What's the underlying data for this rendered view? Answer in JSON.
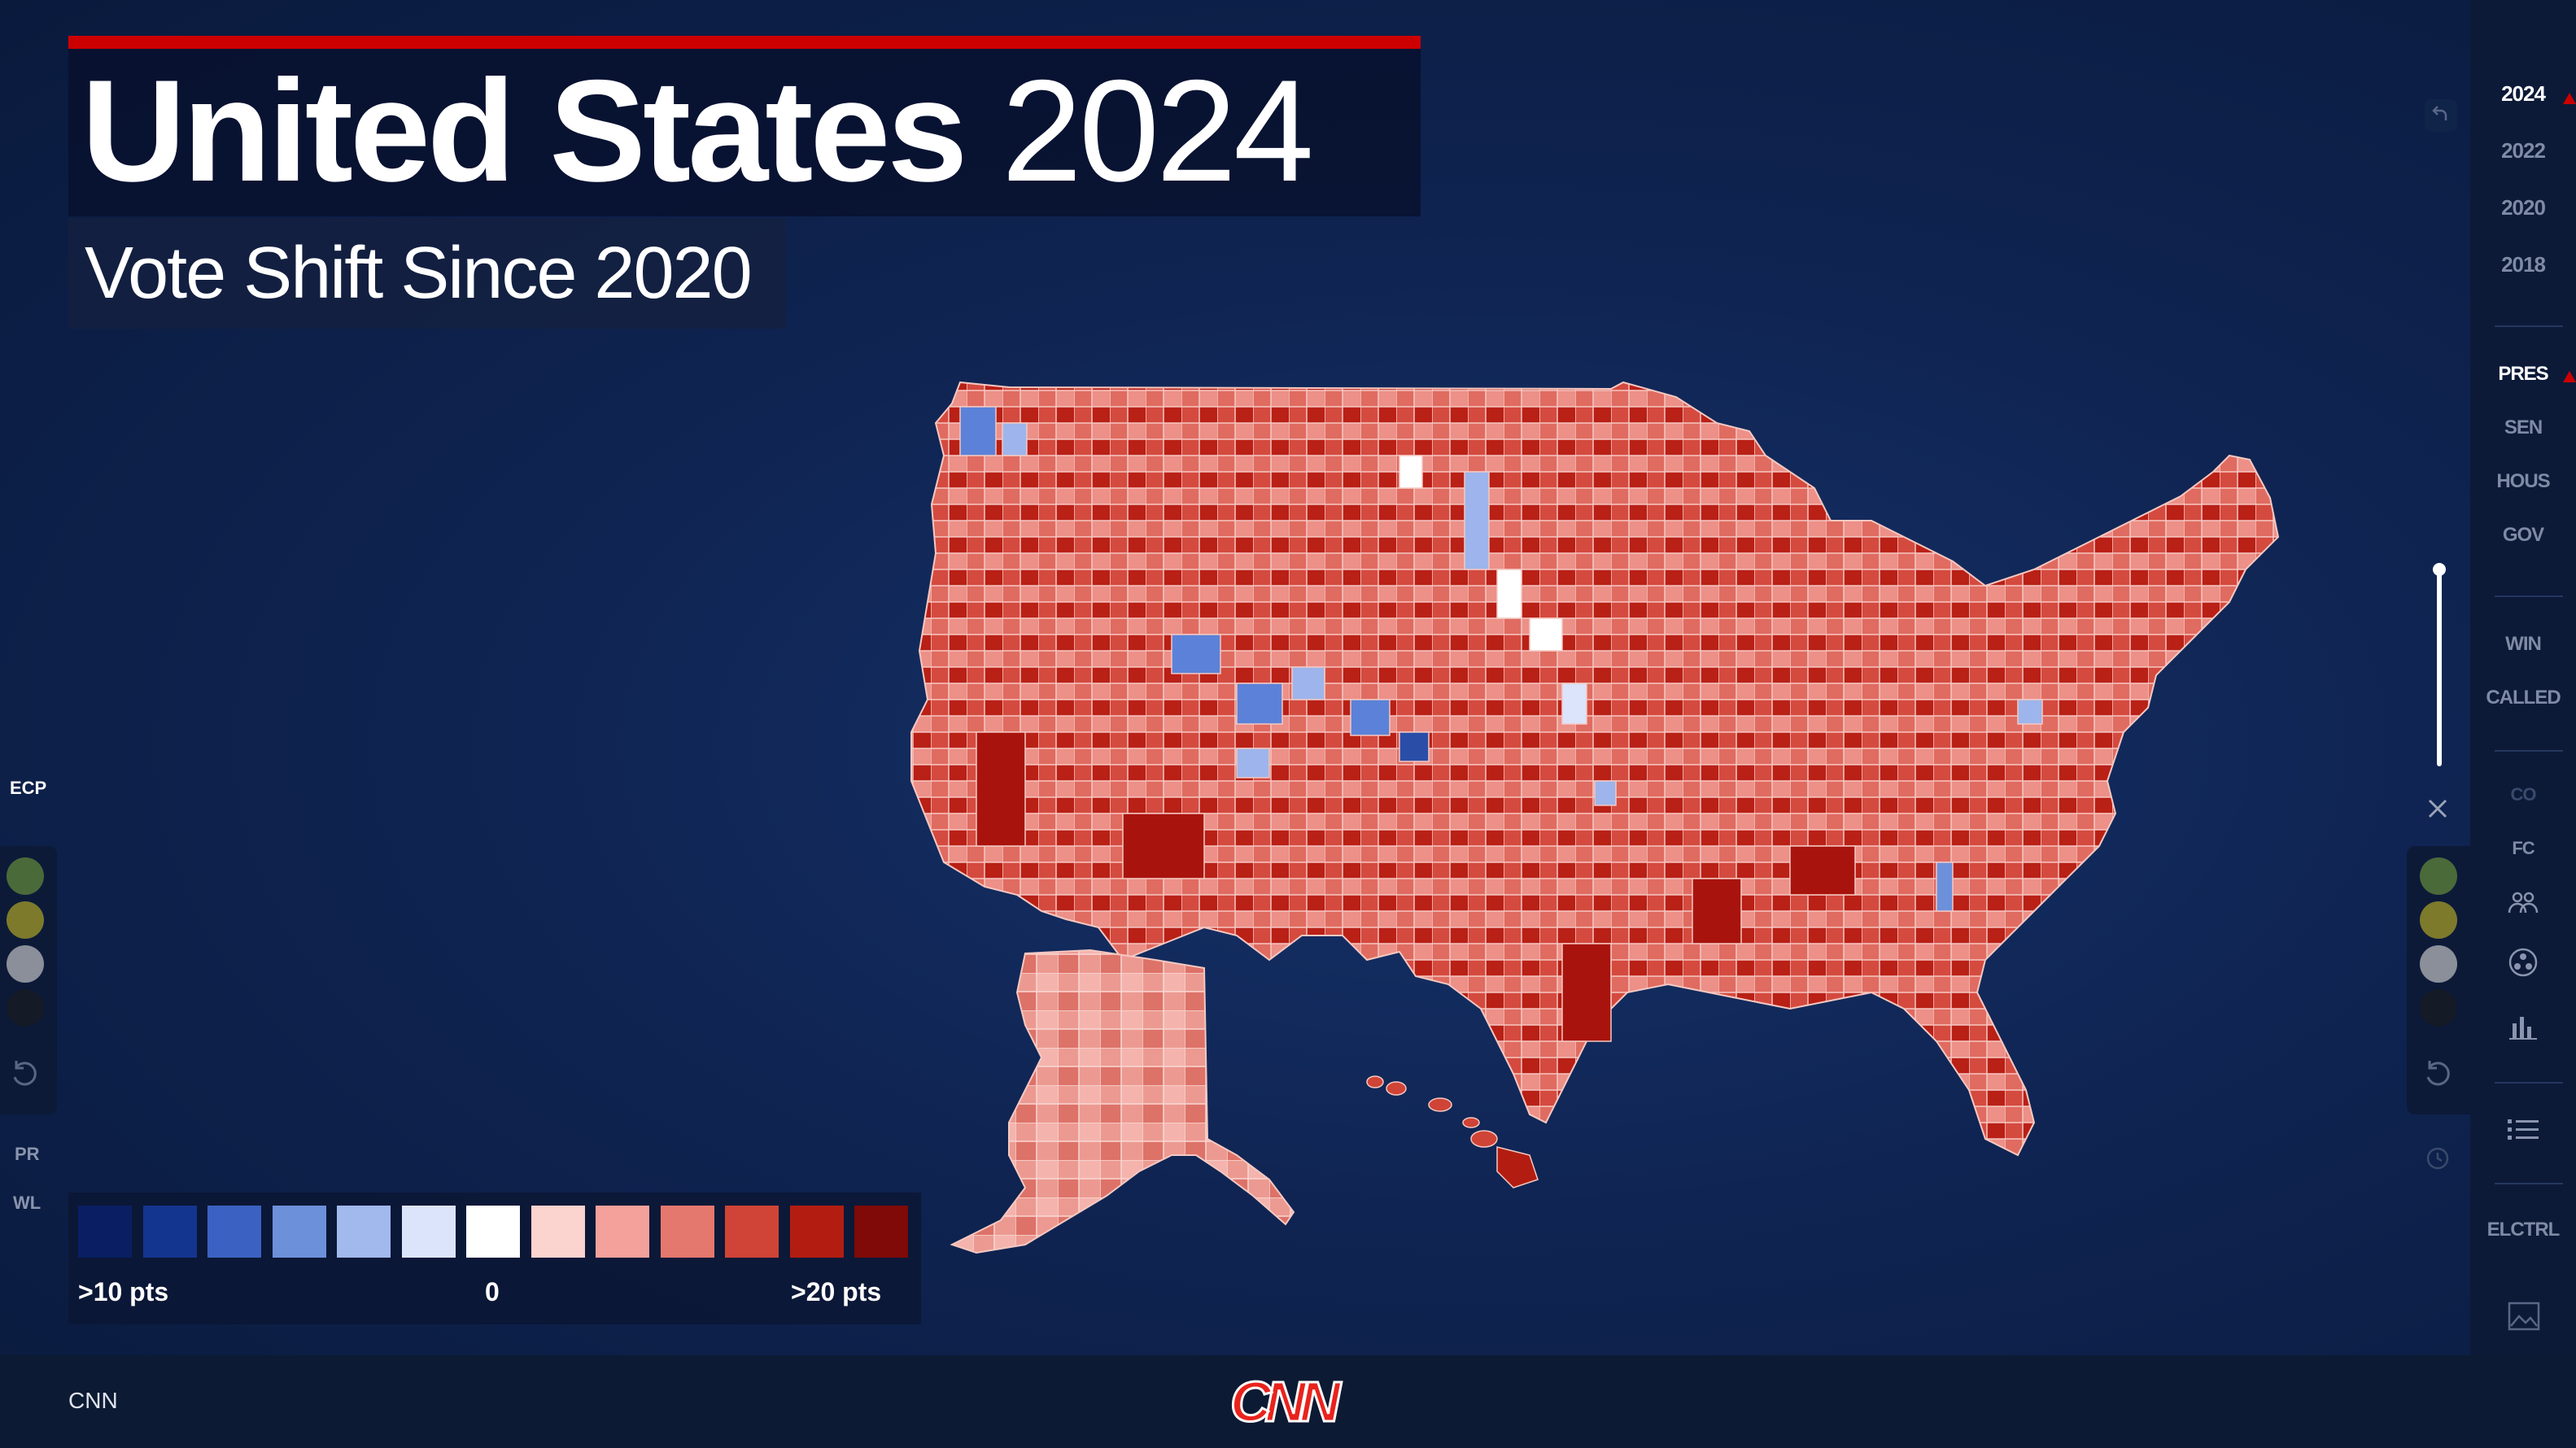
{
  "header": {
    "title_bold": "United States",
    "title_year": "2024",
    "subtitle": "Vote Shift Since 2020"
  },
  "right_rail": {
    "years": [
      "2024",
      "2022",
      "2020",
      "2018"
    ],
    "active_year": "2024",
    "races": [
      "PRES",
      "SEN",
      "HOUS",
      "GOV"
    ],
    "active_race": "PRES",
    "modes": [
      "WIN",
      "CALLED"
    ],
    "extras": [
      "CO",
      "FC"
    ],
    "electoral_label": "ELCTRL",
    "icons": [
      "undo-arrow-icon",
      "close-icon",
      "people-icon",
      "ball-icon",
      "bar-chart-icon",
      "list-icon",
      "image-icon"
    ]
  },
  "left_rail": {
    "top_label": "ECP",
    "bottom_labels": [
      "PR",
      "WL"
    ]
  },
  "legend": {
    "left_label": ">10 pts",
    "center_label": "0",
    "right_label": ">20 pts",
    "colors": [
      "#0a1f63",
      "#14358f",
      "#3b62c2",
      "#6d90db",
      "#a2b9ee",
      "#dbe4fa",
      "#ffffff",
      "#fbd3cf",
      "#f3a19a",
      "#e4776e",
      "#cf4436",
      "#b31d11",
      "#7f0a07"
    ]
  },
  "tool_dots": [
    "#4a6a3a",
    "#7d7a2c",
    "#8a8f99",
    "#141a26"
  ],
  "footer": {
    "network_label": "CNN",
    "logo": "CNN"
  },
  "map": {
    "region": "United States counties",
    "colors": {
      "dem": "#4d74cc",
      "rep": "#d6473c",
      "rep_dark": "#a8140d",
      "rep_light": "#ec9a91",
      "neutral": "#ffffff"
    }
  }
}
